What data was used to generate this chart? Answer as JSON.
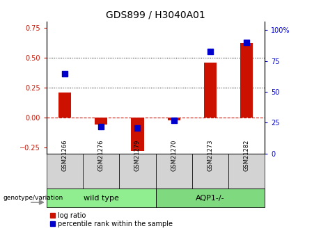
{
  "title": "GDS899 / H3040A01",
  "samples": [
    "GSM21266",
    "GSM21276",
    "GSM21279",
    "GSM21270",
    "GSM21273",
    "GSM21282"
  ],
  "log_ratio": [
    0.21,
    -0.06,
    -0.28,
    -0.02,
    0.46,
    0.62
  ],
  "percentile_rank": [
    65,
    22,
    21,
    27,
    83,
    90
  ],
  "groups": [
    {
      "label": "wild type",
      "indices": [
        0,
        1,
        2
      ],
      "color": "#90ee90"
    },
    {
      "label": "AQP1-/-",
      "indices": [
        3,
        4,
        5
      ],
      "color": "#7fda7f"
    }
  ],
  "group_label": "genotype/variation",
  "bar_color": "#cc1100",
  "dot_color": "#0000cc",
  "left_ylim": [
    -0.3,
    0.8
  ],
  "right_ylim": [
    0,
    107
  ],
  "left_yticks": [
    -0.25,
    0,
    0.25,
    0.5,
    0.75
  ],
  "right_yticks": [
    0,
    25,
    50,
    75,
    100
  ],
  "hline_zero_color": "#cc1100",
  "dotted_lines": [
    0.25,
    0.5
  ],
  "bar_width": 0.35,
  "dot_size": 40,
  "legend_red_label": "log ratio",
  "legend_blue_label": "percentile rank within the sample",
  "sample_box_color": "#d3d3d3",
  "title_fontsize": 10,
  "tick_fontsize": 7,
  "sample_fontsize": 6,
  "group_fontsize": 8,
  "legend_fontsize": 7
}
